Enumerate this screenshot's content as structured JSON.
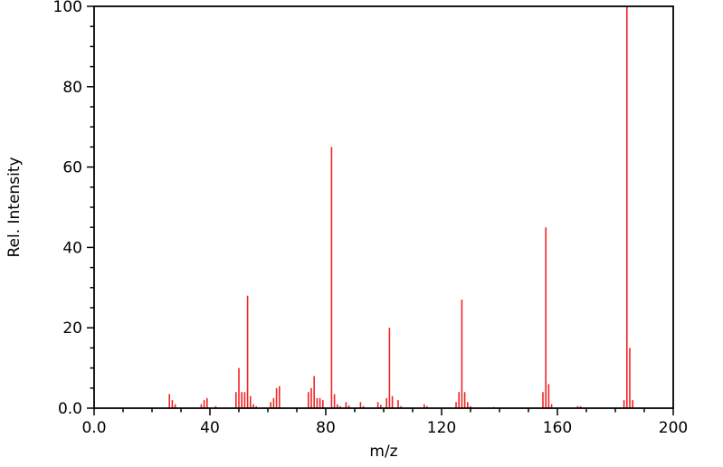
{
  "chart_data": {
    "type": "bar",
    "subtype": "mass-spectrum",
    "title": "",
    "xlabel": "m/z",
    "ylabel": "Rel. Intensity",
    "xlim": [
      0,
      200
    ],
    "ylim": [
      0,
      100
    ],
    "grid": false,
    "legend": "none",
    "bar_color": "#f02525",
    "axis_color": "#000000",
    "x_major_ticks": [
      0,
      40,
      80,
      120,
      160,
      200
    ],
    "x_major_tick_labels": [
      "0.0",
      "40",
      "80",
      "120",
      "160",
      "200"
    ],
    "x_minor_tick_step": 10,
    "y_major_ticks": [
      0,
      20,
      40,
      60,
      80,
      100
    ],
    "y_major_tick_labels": [
      "0.0",
      "20",
      "40",
      "60",
      "80",
      "100"
    ],
    "y_minor_tick_step": 5,
    "peaks": [
      [
        26,
        3.5
      ],
      [
        27,
        2
      ],
      [
        28,
        1
      ],
      [
        37,
        1
      ],
      [
        38,
        2
      ],
      [
        39,
        2.5
      ],
      [
        42,
        0.5
      ],
      [
        49,
        4
      ],
      [
        50,
        10
      ],
      [
        51,
        4
      ],
      [
        52,
        4
      ],
      [
        53,
        28
      ],
      [
        54,
        3
      ],
      [
        55,
        1
      ],
      [
        56,
        0.5
      ],
      [
        61,
        1.5
      ],
      [
        62,
        2.5
      ],
      [
        63,
        5
      ],
      [
        64,
        5.5
      ],
      [
        74,
        4
      ],
      [
        75,
        5
      ],
      [
        76,
        8
      ],
      [
        77,
        2.5
      ],
      [
        78,
        2.5
      ],
      [
        79,
        2
      ],
      [
        82,
        65
      ],
      [
        83,
        3.5
      ],
      [
        84,
        1
      ],
      [
        85,
        0.5
      ],
      [
        87,
        1.5
      ],
      [
        88,
        0.7
      ],
      [
        92,
        1.5
      ],
      [
        93,
        0.5
      ],
      [
        98,
        1.5
      ],
      [
        99,
        0.8
      ],
      [
        101,
        2.5
      ],
      [
        102,
        20
      ],
      [
        103,
        3
      ],
      [
        105,
        2
      ],
      [
        106,
        0.5
      ],
      [
        114,
        1
      ],
      [
        115,
        0.5
      ],
      [
        125,
        1.5
      ],
      [
        126,
        4
      ],
      [
        127,
        27
      ],
      [
        128,
        4
      ],
      [
        129,
        1.5
      ],
      [
        130,
        0.5
      ],
      [
        138,
        0.3
      ],
      [
        155,
        4
      ],
      [
        156,
        45
      ],
      [
        157,
        6
      ],
      [
        158,
        1
      ],
      [
        167,
        0.5
      ],
      [
        168,
        0.5
      ],
      [
        183,
        2
      ],
      [
        184,
        100
      ],
      [
        185,
        15
      ],
      [
        186,
        2
      ]
    ]
  }
}
